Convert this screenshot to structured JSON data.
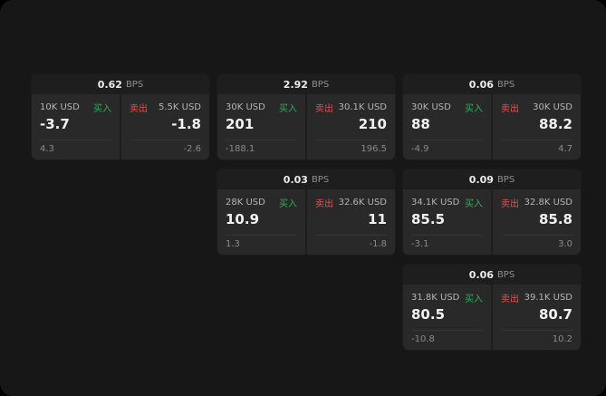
{
  "app": {
    "background": "#171717",
    "card_background": "#1e1e1e",
    "panel_background": "#292929",
    "buy_color": "#2fae60",
    "sell_color": "#e05252"
  },
  "labels": {
    "buy": "买入",
    "sell": "卖出",
    "bps": "BPS"
  },
  "cards": [
    {
      "spread": "0.62",
      "buy": {
        "amount": "10K USD",
        "price": "-3.7",
        "delta": "4.3"
      },
      "sell": {
        "amount": "5.5K USD",
        "price": "-1.8",
        "delta": "-2.6"
      }
    },
    {
      "spread": "2.92",
      "buy": {
        "amount": "30K USD",
        "price": "201",
        "delta": "-188.1"
      },
      "sell": {
        "amount": "30.1K USD",
        "price": "210",
        "delta": "196.5"
      }
    },
    {
      "spread": "0.06",
      "buy": {
        "amount": "30K USD",
        "price": "88",
        "delta": "-4.9"
      },
      "sell": {
        "amount": "30K USD",
        "price": "88.2",
        "delta": "4.7"
      }
    },
    {
      "spread": "0.03",
      "buy": {
        "amount": "28K USD",
        "price": "10.9",
        "delta": "1.3"
      },
      "sell": {
        "amount": "32.6K USD",
        "price": "11",
        "delta": "-1.8"
      }
    },
    {
      "spread": "0.09",
      "buy": {
        "amount": "34.1K USD",
        "price": "85.5",
        "delta": "-3.1"
      },
      "sell": {
        "amount": "32.8K USD",
        "price": "85.8",
        "delta": "3.0"
      }
    },
    {
      "spread": "0.06",
      "buy": {
        "amount": "31.8K USD",
        "price": "80.5",
        "delta": "-10.8"
      },
      "sell": {
        "amount": "39.1K USD",
        "price": "80.7",
        "delta": "10.2"
      }
    }
  ]
}
